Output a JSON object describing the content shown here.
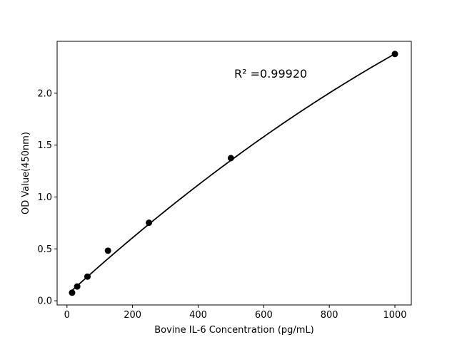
{
  "chart_data": {
    "type": "scatter",
    "xlabel": "Bovine IL-6 Concentration (pg/mL)",
    "ylabel": "OD Value(450nm)",
    "annotation": "R² =0.99920",
    "xlim": [
      -30,
      1050
    ],
    "ylim": [
      -0.04,
      2.5
    ],
    "x_ticks": [
      0,
      200,
      400,
      600,
      800,
      1000
    ],
    "y_ticks": [
      0.0,
      0.5,
      1.0,
      1.5,
      2.0
    ],
    "x_tick_labels": [
      "0",
      "200",
      "400",
      "600",
      "800",
      "1000"
    ],
    "y_tick_labels": [
      "0.0",
      "0.5",
      "1.0",
      "1.5",
      "2.0"
    ],
    "grid": false,
    "points": [
      {
        "x": 15.6,
        "y": 0.078
      },
      {
        "x": 31.25,
        "y": 0.138
      },
      {
        "x": 62.5,
        "y": 0.233
      },
      {
        "x": 125,
        "y": 0.483
      },
      {
        "x": 250,
        "y": 0.752
      },
      {
        "x": 500,
        "y": 1.375
      },
      {
        "x": 1000,
        "y": 2.378
      }
    ],
    "fit_curve": {
      "type": "quadratic",
      "x_range": [
        15.6,
        1000
      ],
      "coefficients": [
        0.0553,
        0.002869,
        -5.45e-07
      ]
    },
    "colors": {
      "marker": "#000000",
      "line": "#000000",
      "axes": "#000000"
    }
  }
}
